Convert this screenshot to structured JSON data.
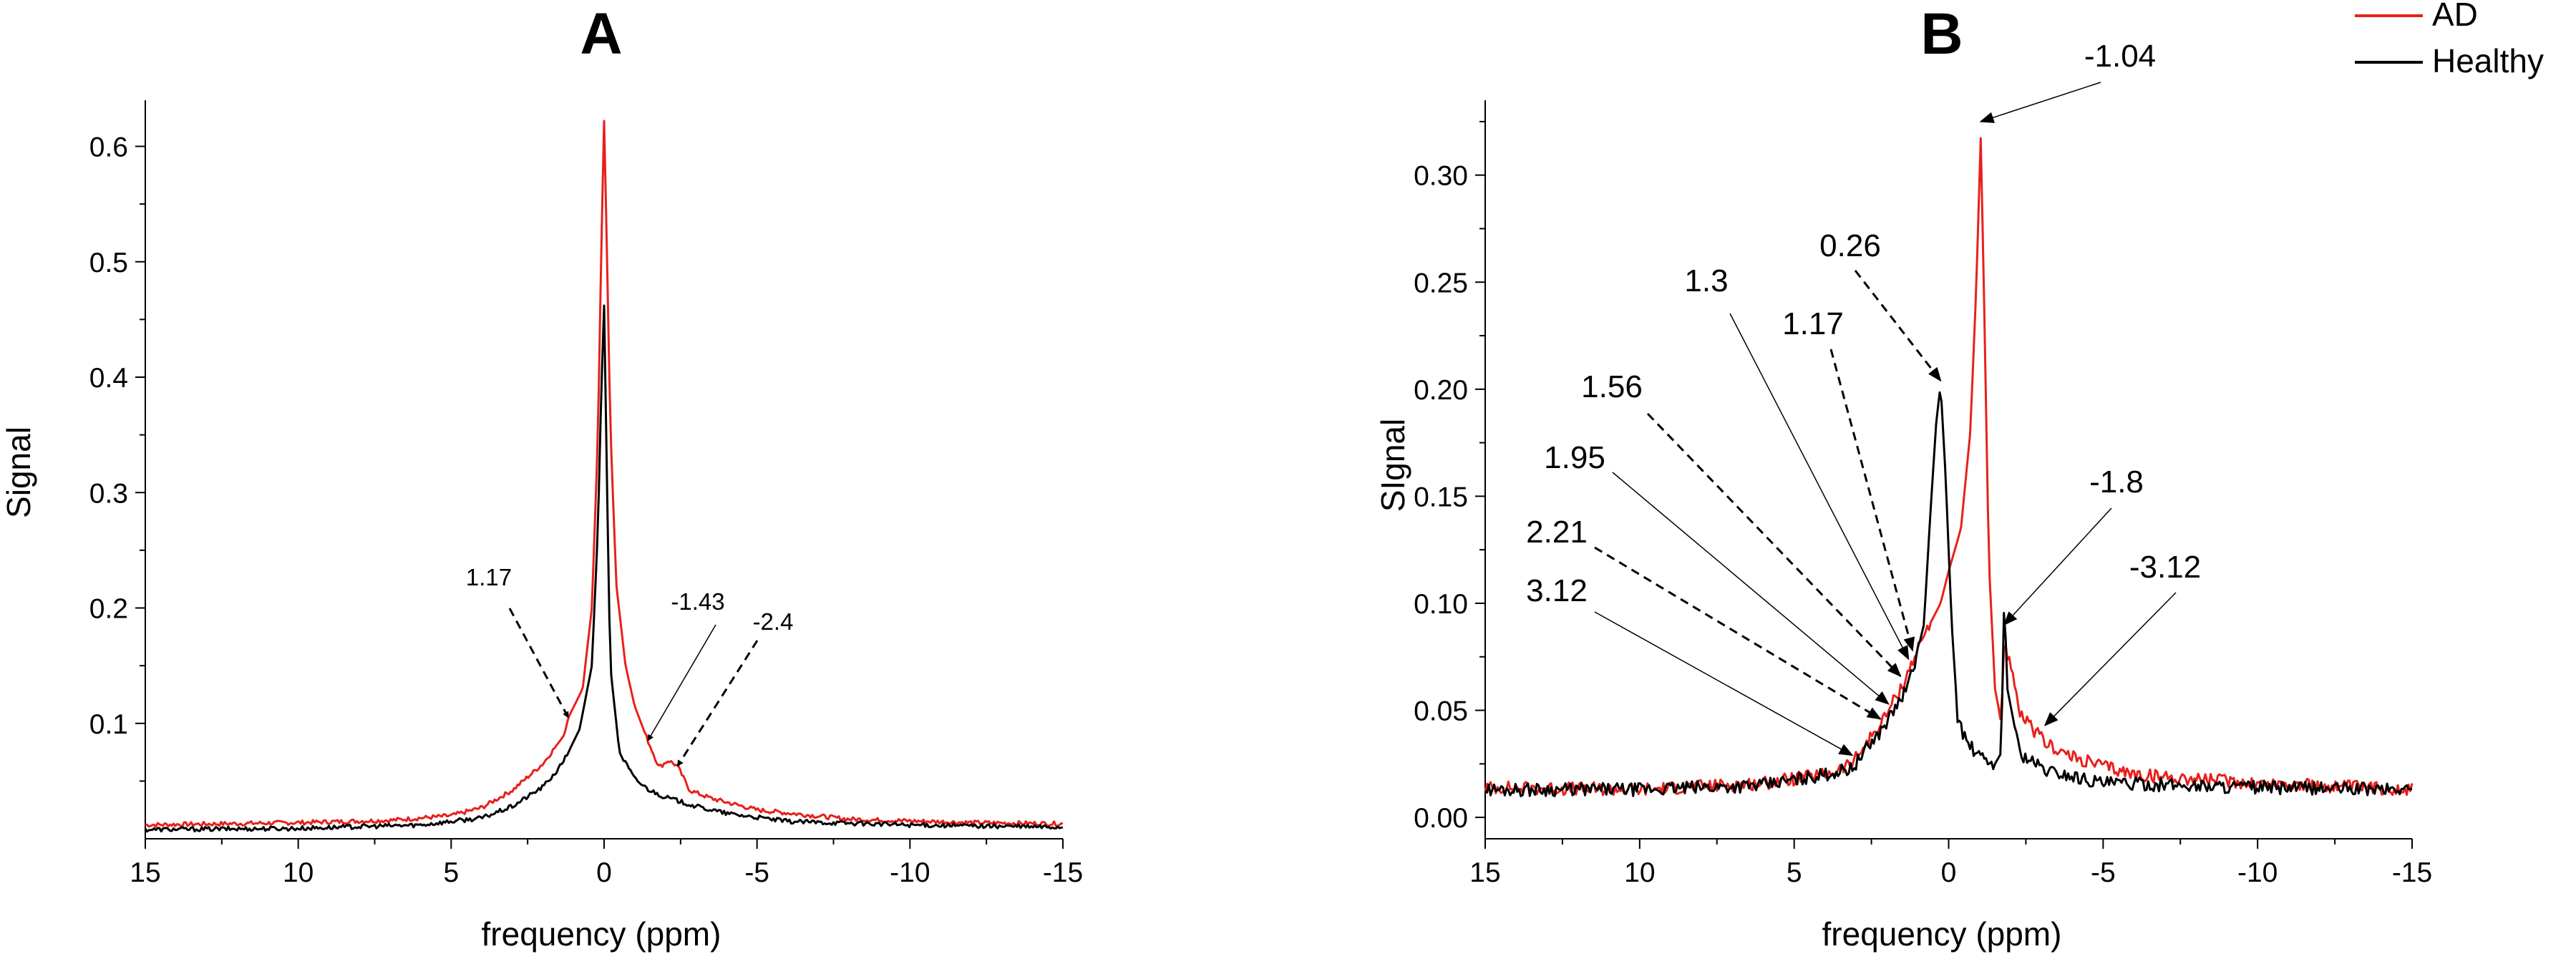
{
  "legend": [
    {
      "label": "AD",
      "color": "#e8201c"
    },
    {
      "label": "Healthy",
      "color": "#000000"
    }
  ],
  "chart_data": [
    {
      "type": "line",
      "panel": "A",
      "xlabel": "frequency (ppm)",
      "ylabel": "Signal",
      "xlim": [
        15,
        -15
      ],
      "ylim": [
        0,
        0.64
      ],
      "xticks": [
        15,
        10,
        5,
        0,
        -5,
        -10,
        -15
      ],
      "yticks": [
        0.1,
        0.2,
        0.3,
        0.4,
        0.5,
        0.6
      ],
      "ytick_decimals": 1,
      "series": [
        {
          "name": "AD",
          "color": "#e8201c",
          "points": [
            [
              15,
              0.012
            ],
            [
              10,
              0.014
            ],
            [
              7,
              0.016
            ],
            [
              5,
              0.02
            ],
            [
              4,
              0.027
            ],
            [
              3,
              0.042
            ],
            [
              2,
              0.065
            ],
            [
              1.3,
              0.09
            ],
            [
              1.17,
              0.105
            ],
            [
              0.7,
              0.13
            ],
            [
              0.4,
              0.2
            ],
            [
              0.2,
              0.35
            ],
            [
              0.1,
              0.5
            ],
            [
              0,
              0.622
            ],
            [
              -0.1,
              0.5
            ],
            [
              -0.2,
              0.36
            ],
            [
              -0.4,
              0.22
            ],
            [
              -0.7,
              0.15
            ],
            [
              -1.0,
              0.115
            ],
            [
              -1.43,
              0.085
            ],
            [
              -1.8,
              0.062
            ],
            [
              -2.1,
              0.068
            ],
            [
              -2.4,
              0.063
            ],
            [
              -2.8,
              0.042
            ],
            [
              -3.5,
              0.035
            ],
            [
              -5,
              0.025
            ],
            [
              -8,
              0.017
            ],
            [
              -12,
              0.014
            ],
            [
              -15,
              0.013
            ]
          ]
        },
        {
          "name": "Healthy",
          "color": "#000000",
          "points": [
            [
              15,
              0.008
            ],
            [
              10,
              0.009
            ],
            [
              6,
              0.012
            ],
            [
              4,
              0.018
            ],
            [
              3,
              0.028
            ],
            [
              2,
              0.045
            ],
            [
              1.5,
              0.06
            ],
            [
              1.17,
              0.075
            ],
            [
              0.8,
              0.095
            ],
            [
              0.4,
              0.15
            ],
            [
              0.2,
              0.27
            ],
            [
              0.1,
              0.38
            ],
            [
              0,
              0.462
            ],
            [
              -0.1,
              0.3
            ],
            [
              -0.2,
              0.15
            ],
            [
              -0.5,
              0.075
            ],
            [
              -1.0,
              0.052
            ],
            [
              -1.43,
              0.043
            ],
            [
              -2.0,
              0.036
            ],
            [
              -2.4,
              0.033
            ],
            [
              -3.0,
              0.028
            ],
            [
              -4,
              0.022
            ],
            [
              -6,
              0.015
            ],
            [
              -10,
              0.012
            ],
            [
              -15,
              0.01
            ]
          ]
        }
      ],
      "annotations": [
        {
          "text": "1.17",
          "style": "dashed",
          "x": 1.17
        },
        {
          "text": "-1.43",
          "style": "solid",
          "x": -1.43
        },
        {
          "text": "-2.4",
          "style": "dashed",
          "x": -2.4
        }
      ]
    },
    {
      "type": "line",
      "panel": "B",
      "xlabel": "frequency (ppm)",
      "ylabel": "SIgnal",
      "xlim": [
        15,
        -15
      ],
      "ylim": [
        -0.01,
        0.335
      ],
      "xticks": [
        15,
        10,
        5,
        0,
        -5,
        -10,
        -15
      ],
      "yticks": [
        0.0,
        0.05,
        0.1,
        0.15,
        0.2,
        0.25,
        0.3
      ],
      "ytick_decimals": 2,
      "series": [
        {
          "name": "AD",
          "color": "#e8201c",
          "points": [
            [
              15,
              0.014
            ],
            [
              10,
              0.013
            ],
            [
              6,
              0.016
            ],
            [
              4,
              0.02
            ],
            [
              3.12,
              0.025
            ],
            [
              2.5,
              0.038
            ],
            [
              2.21,
              0.043
            ],
            [
              1.95,
              0.05
            ],
            [
              1.56,
              0.06
            ],
            [
              1.3,
              0.068
            ],
            [
              1.17,
              0.073
            ],
            [
              0.8,
              0.085
            ],
            [
              0.26,
              0.1
            ],
            [
              0,
              0.115
            ],
            [
              -0.4,
              0.135
            ],
            [
              -0.7,
              0.18
            ],
            [
              -0.9,
              0.25
            ],
            [
              -1.04,
              0.318
            ],
            [
              -1.15,
              0.24
            ],
            [
              -1.3,
              0.12
            ],
            [
              -1.5,
              0.06
            ],
            [
              -1.7,
              0.045
            ],
            [
              -1.8,
              0.083
            ],
            [
              -2.0,
              0.07
            ],
            [
              -2.3,
              0.048
            ],
            [
              -2.8,
              0.04
            ],
            [
              -3.12,
              0.035
            ],
            [
              -4,
              0.028
            ],
            [
              -6,
              0.02
            ],
            [
              -10,
              0.016
            ],
            [
              -15,
              0.013
            ]
          ]
        },
        {
          "name": "Healthy",
          "color": "#000000",
          "points": [
            [
              15,
              0.013
            ],
            [
              10,
              0.013
            ],
            [
              6,
              0.015
            ],
            [
              4,
              0.02
            ],
            [
              3.12,
              0.023
            ],
            [
              2.5,
              0.035
            ],
            [
              2.21,
              0.04
            ],
            [
              1.95,
              0.046
            ],
            [
              1.56,
              0.055
            ],
            [
              1.3,
              0.062
            ],
            [
              1.17,
              0.068
            ],
            [
              0.8,
              0.09
            ],
            [
              0.6,
              0.14
            ],
            [
              0.4,
              0.185
            ],
            [
              0.26,
              0.202
            ],
            [
              0.1,
              0.16
            ],
            [
              -0.1,
              0.09
            ],
            [
              -0.3,
              0.045
            ],
            [
              -0.6,
              0.035
            ],
            [
              -1.0,
              0.028
            ],
            [
              -1.5,
              0.025
            ],
            [
              -1.7,
              0.03
            ],
            [
              -1.8,
              0.104
            ],
            [
              -1.9,
              0.06
            ],
            [
              -2.3,
              0.03
            ],
            [
              -3.12,
              0.022
            ],
            [
              -5,
              0.016
            ],
            [
              -10,
              0.014
            ],
            [
              -15,
              0.013
            ]
          ]
        }
      ],
      "annotations": [
        {
          "text": "-1.04",
          "style": "solid",
          "x": -1.04
        },
        {
          "text": "0.26",
          "style": "dashed",
          "x": 0.26
        },
        {
          "text": "1.3",
          "style": "solid",
          "x": 1.3
        },
        {
          "text": "1.17",
          "style": "dashed",
          "x": 1.17
        },
        {
          "text": "1.56",
          "style": "dashed",
          "x": 1.56
        },
        {
          "text": "1.95",
          "style": "solid",
          "x": 1.95
        },
        {
          "text": "2.21",
          "style": "dashed",
          "x": 2.21
        },
        {
          "text": "3.12",
          "style": "solid",
          "x": 3.12
        },
        {
          "text": "-1.8",
          "style": "solid",
          "x": -1.8
        },
        {
          "text": "-3.12",
          "style": "solid",
          "x": -3.12
        }
      ]
    }
  ]
}
